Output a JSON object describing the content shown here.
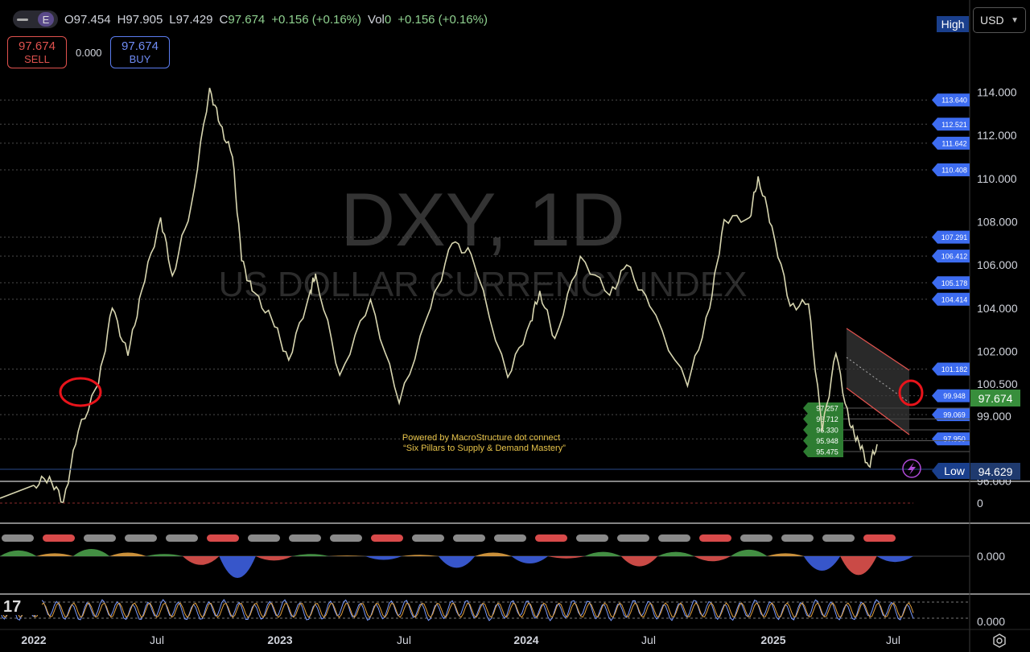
{
  "header": {
    "ohlc": {
      "o_key": "O",
      "o_val": "97.454",
      "h_key": "H",
      "h_val": "97.905",
      "l_key": "L",
      "l_val": "97.429",
      "c_key": "C",
      "c_val": "97.674",
      "change": "+0.156 (+0.16%)",
      "vol_key": "Vol",
      "vol_val": "0",
      "vol_change": "+0.156 (+0.16%)"
    },
    "pill_letter": "E",
    "sell": {
      "price": "97.674",
      "label": "SELL"
    },
    "buy": {
      "price": "97.674",
      "label": "BUY"
    },
    "spread": "0.000",
    "currency": "USD"
  },
  "watermark": {
    "symbol": "DXY, 1D",
    "name": "US DOLLAR CURRENCY INDEX"
  },
  "annotation": {
    "line1": "Powered by MacroStructure dot connect",
    "line2": "“Six Pillars to Supply & Demand Mastery”"
  },
  "colors": {
    "price": "#d8d6b0",
    "sell": "#e0524e",
    "buy": "#5b7cf0",
    "level_blue": "#3d6cf0",
    "level_green": "#2e7d32",
    "current": "#388e3c",
    "circle": "#e8141b",
    "oscillator": "#7a9cff"
  },
  "chart_data": [
    {
      "type": "line",
      "title": "DXY, 1D",
      "subtitle": "US DOLLAR CURRENCY INDEX",
      "xlabel": "",
      "ylabel": "",
      "x_ticks": [
        "2022",
        "Jul",
        "2023",
        "Jul",
        "2024",
        "Jul",
        "2025",
        "Jul"
      ],
      "y_ticks": [
        "114.000",
        "112.000",
        "110.000",
        "108.000",
        "106.000",
        "104.000",
        "102.000",
        "100.500",
        "99.000",
        "96.000"
      ],
      "ylim": [
        94.0,
        114.6
      ],
      "series": [
        {
          "x": [
            "2022-01-01",
            "2022-01-25",
            "2022-02-15",
            "2022-03-10",
            "2022-04-10",
            "2022-05-01",
            "2022-05-25",
            "2022-06-15",
            "2022-07-14",
            "2022-08-01",
            "2022-08-30",
            "2022-09-27",
            "2022-10-13",
            "2022-11-01",
            "2022-11-15",
            "2022-12-01",
            "2022-12-31",
            "2023-01-26",
            "2023-02-28",
            "2023-03-08",
            "2023-04-14",
            "2023-05-31",
            "2023-07-14",
            "2023-08-31",
            "2023-10-03",
            "2023-11-01",
            "2023-12-27",
            "2024-01-31",
            "2024-02-14",
            "2024-03-08",
            "2024-04-16",
            "2024-05-31",
            "2024-06-26",
            "2024-07-31",
            "2024-09-27",
            "2024-10-31",
            "2024-11-22",
            "2024-12-31",
            "2025-01-13",
            "2025-02-03",
            "2025-03-03",
            "2025-03-31",
            "2025-04-21",
            "2025-05-12",
            "2025-06-02",
            "2025-06-16",
            "2025-07-01",
            "2025-07-14"
          ],
          "values": [
            95.8,
            96.2,
            95.0,
            98.3,
            100.5,
            104.0,
            101.8,
            104.8,
            108.2,
            105.5,
            108.8,
            114.2,
            112.5,
            111.0,
            106.2,
            104.8,
            103.5,
            101.6,
            104.8,
            105.6,
            100.9,
            104.4,
            99.6,
            104.0,
            107.0,
            106.5,
            100.8,
            103.4,
            104.8,
            102.6,
            106.4,
            104.6,
            106.0,
            104.1,
            100.4,
            104.0,
            108.1,
            108.2,
            110.1,
            107.8,
            104.1,
            104.2,
            98.3,
            101.9,
            98.6,
            97.8,
            96.7,
            97.7
          ]
        }
      ],
      "levels_right": [
        "113.640",
        "112.521",
        "111.642",
        "110.408",
        "107.291",
        "106.412",
        "105.178",
        "104.414",
        "101.182",
        "99.948",
        "99.069",
        "97.950"
      ],
      "levels_left": [
        "97.257",
        "96.712",
        "96.330",
        "95.948",
        "95.475"
      ],
      "high_label": "High",
      "low_label": "Low",
      "low_value": "94.629",
      "current_value": "97.674"
    },
    {
      "type": "line",
      "title": "",
      "y_ticks": [
        "0"
      ],
      "values": [
        0
      ]
    },
    {
      "type": "area",
      "title": "",
      "y_ticks": [
        "0.000"
      ],
      "values": [
        0.8,
        0.4,
        1.0,
        0.5,
        0.3,
        -1.2,
        -3.0,
        -0.6,
        0.3,
        0.1,
        -0.5,
        0.2,
        -1.6,
        0.5,
        -1.0,
        -0.3,
        0.6,
        -1.4,
        0.6,
        -0.7,
        0.9,
        0.4,
        -2.0,
        -2.6,
        -0.8
      ]
    },
    {
      "type": "line",
      "title": "",
      "y_ticks": [
        "0.000"
      ],
      "values": [
        0.6,
        0.2,
        0.8,
        0.1,
        0.7,
        0.3,
        0.9,
        0.2,
        0.6
      ]
    }
  ]
}
